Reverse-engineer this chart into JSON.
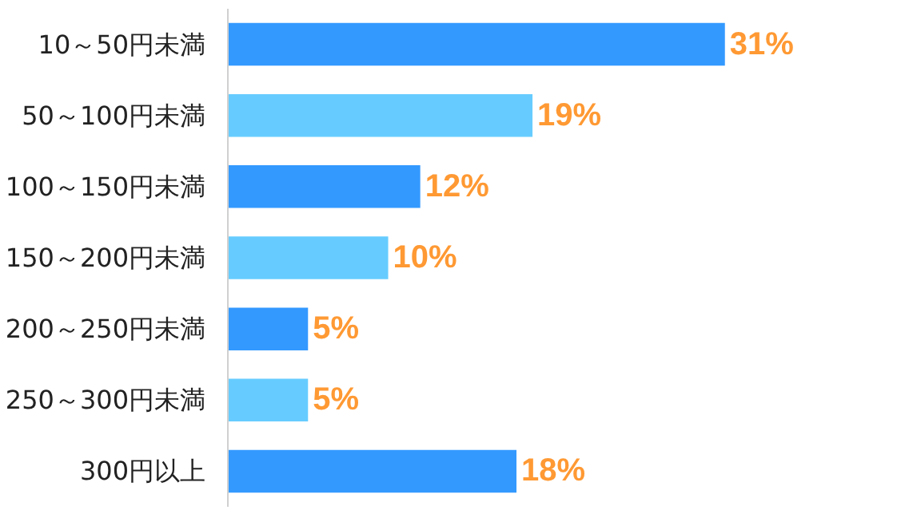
{
  "chart_data": {
    "type": "bar",
    "orientation": "horizontal",
    "categories": [
      "10～50円未満",
      "50～100円未満",
      "100～150円未満",
      "150～200円未満",
      "200～250円未満",
      "250～300円未満",
      "300円以上"
    ],
    "values": [
      31,
      19,
      12,
      10,
      5,
      5,
      18
    ],
    "colors": [
      "#3399ff",
      "#66ccff",
      "#3399ff",
      "#66ccff",
      "#3399ff",
      "#66ccff",
      "#3399ff"
    ],
    "value_labels": [
      "31%",
      "19%",
      "12%",
      "10%",
      "5%",
      "5%",
      "18%"
    ],
    "grid": false
  }
}
